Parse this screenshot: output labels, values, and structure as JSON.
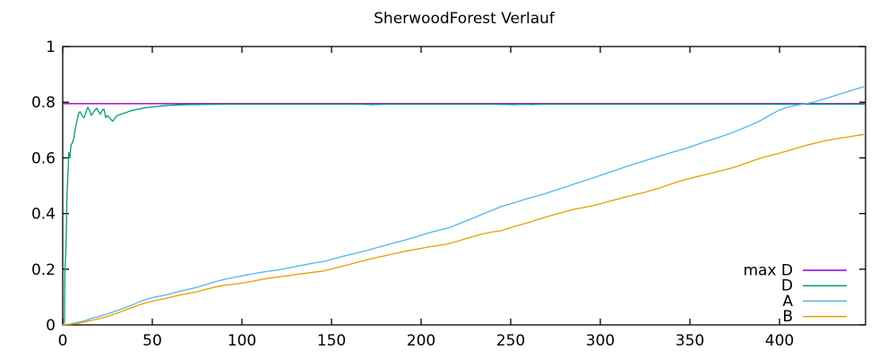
{
  "chart_data": {
    "type": "line",
    "title": "SherwoodForest Verlauf",
    "xlabel": "",
    "ylabel": "",
    "xlim": [
      0,
      448
    ],
    "ylim": [
      0,
      1
    ],
    "xticks": [
      0,
      50,
      100,
      150,
      200,
      250,
      300,
      350,
      400
    ],
    "xtick_labels": [
      "0",
      "50",
      "100",
      "150",
      "200",
      "250",
      "300",
      "350",
      "400"
    ],
    "yticks": [
      0,
      0.2,
      0.4,
      0.6,
      0.8,
      1
    ],
    "ytick_labels": [
      "0",
      "0.2",
      "0.4",
      "0.6",
      "0.8",
      "1"
    ],
    "grid": false,
    "border": "full-box-mirrored-ticks",
    "background_color": "#ffffff",
    "text_color": "#000000",
    "legend": {
      "position": "inside-bottom-right",
      "entries": [
        "max D",
        "D",
        "A",
        "B"
      ]
    },
    "series": [
      {
        "name": "max D",
        "color": "#9400d3",
        "points": [
          [
            0,
            0.795
          ],
          [
            448,
            0.795
          ]
        ]
      },
      {
        "name": "D",
        "color": "#009e73",
        "points": [
          [
            0,
            0
          ],
          [
            1,
            0.01
          ],
          [
            1.2,
            0.19
          ],
          [
            1.8,
            0.28
          ],
          [
            2,
            0.33
          ],
          [
            2.4,
            0.47
          ],
          [
            3,
            0.55
          ],
          [
            3.4,
            0.62
          ],
          [
            4,
            0.6
          ],
          [
            4.6,
            0.645
          ],
          [
            5.4,
            0.655
          ],
          [
            6.2,
            0.67
          ],
          [
            7,
            0.705
          ],
          [
            8,
            0.735
          ],
          [
            8.8,
            0.758
          ],
          [
            9.6,
            0.766
          ],
          [
            10.4,
            0.757
          ],
          [
            11.2,
            0.748
          ],
          [
            12,
            0.745
          ],
          [
            13,
            0.765
          ],
          [
            14,
            0.782
          ],
          [
            15,
            0.77
          ],
          [
            16,
            0.752
          ],
          [
            17,
            0.763
          ],
          [
            18,
            0.772
          ],
          [
            19,
            0.778
          ],
          [
            20,
            0.767
          ],
          [
            21,
            0.757
          ],
          [
            22,
            0.77
          ],
          [
            23,
            0.776
          ],
          [
            24,
            0.745
          ],
          [
            25,
            0.752
          ],
          [
            26,
            0.744
          ],
          [
            27,
            0.737
          ],
          [
            28,
            0.732
          ],
          [
            29,
            0.742
          ],
          [
            30,
            0.75
          ],
          [
            31.5,
            0.755
          ],
          [
            33,
            0.758
          ],
          [
            35,
            0.762
          ],
          [
            37,
            0.767
          ],
          [
            39,
            0.771
          ],
          [
            41,
            0.774
          ],
          [
            43,
            0.776
          ],
          [
            45,
            0.779
          ],
          [
            47,
            0.781
          ],
          [
            50,
            0.783
          ],
          [
            53,
            0.785
          ],
          [
            56,
            0.787
          ],
          [
            60,
            0.789
          ],
          [
            64,
            0.79
          ],
          [
            68,
            0.791
          ],
          [
            73,
            0.7915
          ],
          [
            80,
            0.792
          ],
          [
            90,
            0.7925
          ],
          [
            110,
            0.7925
          ],
          [
            130,
            0.7925
          ],
          [
            150,
            0.7925
          ],
          [
            168,
            0.7925
          ],
          [
            172,
            0.7915
          ],
          [
            178,
            0.7925
          ],
          [
            200,
            0.7925
          ],
          [
            220,
            0.7925
          ],
          [
            240,
            0.7925
          ],
          [
            252,
            0.7915
          ],
          [
            258,
            0.7925
          ],
          [
            262,
            0.7915
          ],
          [
            266,
            0.7925
          ],
          [
            300,
            0.7925
          ],
          [
            350,
            0.7925
          ],
          [
            400,
            0.7925
          ],
          [
            448,
            0.7925
          ]
        ]
      },
      {
        "name": "A",
        "color": "#56b4e9",
        "points": [
          [
            0,
            0
          ],
          [
            4,
            0.003
          ],
          [
            8,
            0.008
          ],
          [
            12,
            0.014
          ],
          [
            16,
            0.023
          ],
          [
            20,
            0.03
          ],
          [
            24,
            0.038
          ],
          [
            28,
            0.046
          ],
          [
            32,
            0.055
          ],
          [
            36,
            0.065
          ],
          [
            40,
            0.075
          ],
          [
            44,
            0.086
          ],
          [
            48,
            0.094
          ],
          [
            50,
            0.098
          ],
          [
            54,
            0.103
          ],
          [
            58,
            0.108
          ],
          [
            62,
            0.115
          ],
          [
            66,
            0.122
          ],
          [
            70,
            0.128
          ],
          [
            75,
            0.135
          ],
          [
            80,
            0.145
          ],
          [
            85,
            0.155
          ],
          [
            90,
            0.163
          ],
          [
            95,
            0.17
          ],
          [
            100,
            0.176
          ],
          [
            105,
            0.182
          ],
          [
            110,
            0.188
          ],
          [
            115,
            0.193
          ],
          [
            120,
            0.197
          ],
          [
            125,
            0.203
          ],
          [
            130,
            0.21
          ],
          [
            135,
            0.216
          ],
          [
            140,
            0.222
          ],
          [
            145,
            0.227
          ],
          [
            150,
            0.235
          ],
          [
            155,
            0.244
          ],
          [
            160,
            0.252
          ],
          [
            165,
            0.26
          ],
          [
            170,
            0.268
          ],
          [
            175,
            0.277
          ],
          [
            180,
            0.286
          ],
          [
            185,
            0.295
          ],
          [
            190,
            0.303
          ],
          [
            195,
            0.312
          ],
          [
            200,
            0.322
          ],
          [
            205,
            0.332
          ],
          [
            210,
            0.34
          ],
          [
            215,
            0.348
          ],
          [
            220,
            0.36
          ],
          [
            225,
            0.373
          ],
          [
            230,
            0.386
          ],
          [
            235,
            0.4
          ],
          [
            240,
            0.413
          ],
          [
            245,
            0.426
          ],
          [
            250,
            0.435
          ],
          [
            255,
            0.445
          ],
          [
            260,
            0.455
          ],
          [
            265,
            0.464
          ],
          [
            270,
            0.473
          ],
          [
            275,
            0.484
          ],
          [
            280,
            0.494
          ],
          [
            285,
            0.505
          ],
          [
            290,
            0.515
          ],
          [
            295,
            0.526
          ],
          [
            300,
            0.537
          ],
          [
            305,
            0.548
          ],
          [
            310,
            0.559
          ],
          [
            315,
            0.57
          ],
          [
            320,
            0.58
          ],
          [
            325,
            0.59
          ],
          [
            330,
            0.6
          ],
          [
            335,
            0.61
          ],
          [
            340,
            0.62
          ],
          [
            345,
            0.629
          ],
          [
            350,
            0.639
          ],
          [
            355,
            0.65
          ],
          [
            360,
            0.661
          ],
          [
            365,
            0.671
          ],
          [
            370,
            0.682
          ],
          [
            375,
            0.694
          ],
          [
            380,
            0.707
          ],
          [
            385,
            0.721
          ],
          [
            390,
            0.736
          ],
          [
            395,
            0.755
          ],
          [
            400,
            0.772
          ],
          [
            404,
            0.781
          ],
          [
            408,
            0.787
          ],
          [
            412,
            0.792
          ],
          [
            416,
            0.796
          ],
          [
            420,
            0.802
          ],
          [
            424,
            0.81
          ],
          [
            428,
            0.818
          ],
          [
            432,
            0.826
          ],
          [
            436,
            0.834
          ],
          [
            440,
            0.842
          ],
          [
            444,
            0.85
          ],
          [
            448,
            0.858
          ]
        ]
      },
      {
        "name": "B",
        "color": "#e69f00",
        "points": [
          [
            0,
            0
          ],
          [
            4,
            0.002
          ],
          [
            8,
            0.005
          ],
          [
            12,
            0.01
          ],
          [
            16,
            0.016
          ],
          [
            20,
            0.022
          ],
          [
            24,
            0.028
          ],
          [
            28,
            0.037
          ],
          [
            32,
            0.046
          ],
          [
            36,
            0.056
          ],
          [
            40,
            0.066
          ],
          [
            44,
            0.075
          ],
          [
            48,
            0.082
          ],
          [
            50,
            0.085
          ],
          [
            54,
            0.09
          ],
          [
            58,
            0.096
          ],
          [
            62,
            0.102
          ],
          [
            66,
            0.108
          ],
          [
            70,
            0.113
          ],
          [
            75,
            0.119
          ],
          [
            80,
            0.128
          ],
          [
            85,
            0.136
          ],
          [
            90,
            0.142
          ],
          [
            95,
            0.146
          ],
          [
            100,
            0.15
          ],
          [
            105,
            0.156
          ],
          [
            110,
            0.162
          ],
          [
            115,
            0.168
          ],
          [
            120,
            0.172
          ],
          [
            125,
            0.176
          ],
          [
            130,
            0.181
          ],
          [
            135,
            0.185
          ],
          [
            140,
            0.189
          ],
          [
            145,
            0.193
          ],
          [
            150,
            0.201
          ],
          [
            155,
            0.209
          ],
          [
            160,
            0.217
          ],
          [
            165,
            0.226
          ],
          [
            170,
            0.234
          ],
          [
            175,
            0.242
          ],
          [
            180,
            0.249
          ],
          [
            185,
            0.256
          ],
          [
            190,
            0.263
          ],
          [
            195,
            0.269
          ],
          [
            200,
            0.275
          ],
          [
            205,
            0.281
          ],
          [
            210,
            0.286
          ],
          [
            215,
            0.291
          ],
          [
            220,
            0.3
          ],
          [
            225,
            0.31
          ],
          [
            230,
            0.319
          ],
          [
            235,
            0.328
          ],
          [
            240,
            0.334
          ],
          [
            245,
            0.339
          ],
          [
            250,
            0.35
          ],
          [
            255,
            0.359
          ],
          [
            260,
            0.368
          ],
          [
            265,
            0.378
          ],
          [
            270,
            0.388
          ],
          [
            275,
            0.397
          ],
          [
            280,
            0.406
          ],
          [
            285,
            0.415
          ],
          [
            290,
            0.421
          ],
          [
            295,
            0.427
          ],
          [
            300,
            0.435
          ],
          [
            305,
            0.444
          ],
          [
            310,
            0.452
          ],
          [
            315,
            0.461
          ],
          [
            320,
            0.469
          ],
          [
            325,
            0.477
          ],
          [
            330,
            0.486
          ],
          [
            335,
            0.496
          ],
          [
            340,
            0.507
          ],
          [
            345,
            0.518
          ],
          [
            350,
            0.526
          ],
          [
            355,
            0.534
          ],
          [
            360,
            0.542
          ],
          [
            365,
            0.55
          ],
          [
            370,
            0.558
          ],
          [
            375,
            0.567
          ],
          [
            380,
            0.578
          ],
          [
            385,
            0.589
          ],
          [
            390,
            0.6
          ],
          [
            395,
            0.609
          ],
          [
            400,
            0.617
          ],
          [
            405,
            0.626
          ],
          [
            410,
            0.636
          ],
          [
            415,
            0.645
          ],
          [
            420,
            0.653
          ],
          [
            425,
            0.661
          ],
          [
            430,
            0.667
          ],
          [
            435,
            0.672
          ],
          [
            440,
            0.677
          ],
          [
            444,
            0.681
          ],
          [
            448,
            0.685
          ]
        ]
      }
    ]
  }
}
